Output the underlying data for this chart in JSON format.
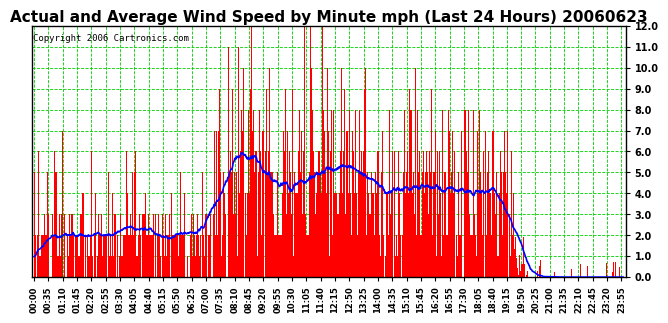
{
  "title": "Actual and Average Wind Speed by Minute mph (Last 24 Hours) 20060623",
  "copyright": "Copyright 2006 Cartronics.com",
  "ylim": [
    0.0,
    12.0
  ],
  "yticks": [
    0.0,
    1.0,
    2.0,
    3.0,
    4.0,
    5.0,
    6.0,
    7.0,
    8.0,
    9.0,
    10.0,
    11.0,
    12.0
  ],
  "bar_color": "#FF0000",
  "line_color": "#0000FF",
  "grid_color": "#00CC00",
  "background_color": "#FFFFFF",
  "plot_bg_color": "#FFFFFF",
  "title_fontsize": 11,
  "copyright_fontsize": 6.5,
  "tick_fontsize": 6,
  "ytick_fontsize": 7,
  "n_minutes": 1440,
  "seed": 42
}
